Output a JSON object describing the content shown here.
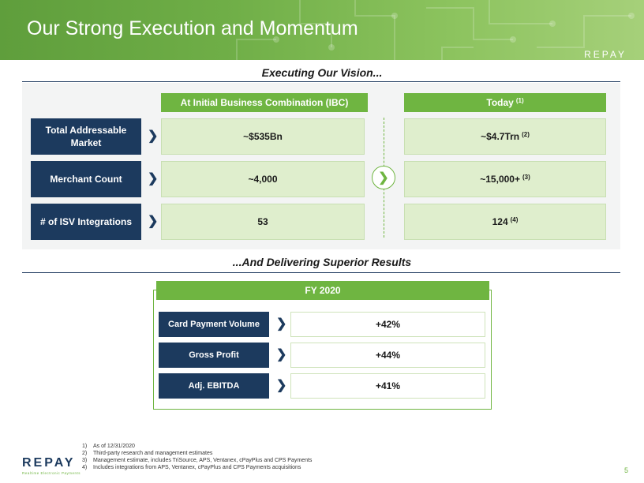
{
  "header": {
    "title": "Our Strong Execution and Momentum",
    "brand": "REPAY"
  },
  "vision": {
    "heading": "Executing Our Vision...",
    "col_ibc": "At Initial Business Combination (IBC)",
    "col_today": "Today",
    "col_today_note": "(1)",
    "rows": [
      {
        "label": "Total Addressable Market",
        "ibc": "~$535Bn",
        "today": "~$4.7Trn",
        "today_note": "(2)"
      },
      {
        "label": "Merchant Count",
        "ibc": "~4,000",
        "today": "~15,000+",
        "today_note": "(3)"
      },
      {
        "label": "# of ISV Integrations",
        "ibc": "53",
        "today": "124",
        "today_note": "(4)"
      }
    ]
  },
  "results": {
    "heading": "...And Delivering Superior Results",
    "period": "FY 2020",
    "rows": [
      {
        "label": "Card Payment Volume",
        "value": "+42%"
      },
      {
        "label": "Gross Profit",
        "value": "+44%"
      },
      {
        "label": "Adj. EBITDA",
        "value": "+41%"
      }
    ]
  },
  "footnotes": [
    {
      "num": "1)",
      "text": "As of 12/31/2020"
    },
    {
      "num": "2)",
      "text": "Third-party research and management estimates"
    },
    {
      "num": "3)",
      "text": "Management estimate, includes TriSource, APS, Ventanex, cPayPlus and CPS Payments"
    },
    {
      "num": "4)",
      "text": "Includes integrations from APS, Ventanex, cPayPlus and CPS Payments acquisitions"
    }
  ],
  "footer": {
    "logo": "REPAY",
    "tagline": "Realtime Electronic Payments",
    "page_number": "5"
  },
  "colors": {
    "navy": "#1c3a5e",
    "green": "#6fb541",
    "light_green": "#dfeecd"
  }
}
